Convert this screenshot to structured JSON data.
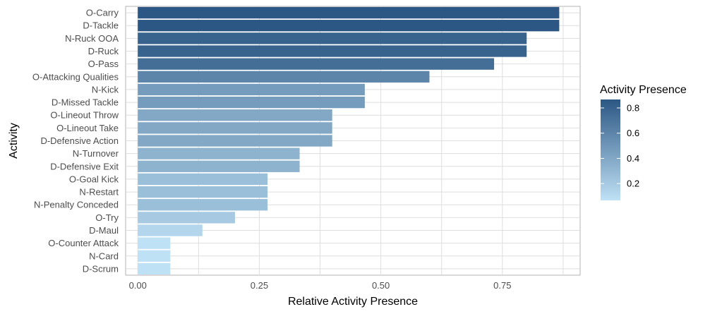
{
  "chart_data": {
    "type": "bar",
    "orientation": "horizontal",
    "xlabel": "Relative Activity Presence",
    "ylabel": "Activity",
    "xlim": [
      -0.025,
      0.91
    ],
    "x_ticks": [
      "0.00",
      "0.25",
      "0.50",
      "0.75"
    ],
    "x_tick_values": [
      0,
      0.25,
      0.5,
      0.75
    ],
    "grid": true,
    "categories": [
      "O-Carry",
      "D-Tackle",
      "N-Ruck OOA",
      "D-Ruck",
      "O-Pass",
      "O-Attacking Qualities",
      "N-Kick",
      "D-Missed Tackle",
      "O-Lineout Throw",
      "O-Lineout Take",
      "D-Defensive Action",
      "N-Turnover",
      "D-Defensive Exit",
      "O-Goal Kick",
      "N-Restart",
      "N-Penalty Conceded",
      "O-Try",
      "D-Maul",
      "O-Counter Attack",
      "N-Card",
      "D-Scrum"
    ],
    "values": [
      0.867,
      0.867,
      0.8,
      0.8,
      0.733,
      0.6,
      0.467,
      0.467,
      0.4,
      0.4,
      0.4,
      0.333,
      0.333,
      0.267,
      0.267,
      0.267,
      0.2,
      0.133,
      0.067,
      0.067,
      0.067
    ],
    "legend": {
      "title": "Activity Presence",
      "position": "right",
      "range": [
        0.067,
        0.867
      ],
      "ticks": [
        "0.2",
        "0.4",
        "0.6",
        "0.8"
      ],
      "tick_values": [
        0.2,
        0.4,
        0.6,
        0.8
      ],
      "low_color": "#BFE1F5",
      "high_color": "#2C5784"
    }
  }
}
